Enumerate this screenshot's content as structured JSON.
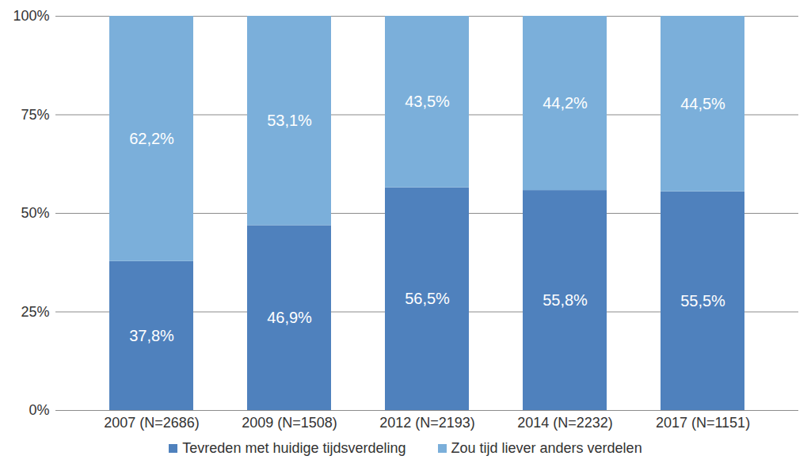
{
  "chart_data": {
    "type": "bar",
    "stacked": true,
    "categories": [
      "2007 (N=2686)",
      "2009 (N=1508)",
      "2012 (N=2193)",
      "2014 (N=2232)",
      "2017 (N=1151)"
    ],
    "series": [
      {
        "name": "Tevreden met huidige tijdsverdeling",
        "color": "#4f81bd",
        "values": [
          37.8,
          46.9,
          56.5,
          55.8,
          55.5
        ],
        "value_labels": [
          "37,8%",
          "46,9%",
          "56,5%",
          "55,8%",
          "55,5%"
        ]
      },
      {
        "name": "Zou tijd liever anders verdelen",
        "color": "#7bafda",
        "values": [
          62.2,
          53.1,
          43.5,
          44.2,
          44.5
        ],
        "value_labels": [
          "62,2%",
          "53,1%",
          "43,5%",
          "44,2%",
          "44,5%"
        ]
      }
    ],
    "ylim": [
      0,
      100
    ],
    "yticks": [
      {
        "value": 0,
        "label": "0%"
      },
      {
        "value": 25,
        "label": "25%"
      },
      {
        "value": 50,
        "label": "50%"
      },
      {
        "value": 75,
        "label": "75%"
      },
      {
        "value": 100,
        "label": "100%"
      }
    ],
    "grid": true,
    "data_labels": true,
    "legend": "bottom"
  }
}
